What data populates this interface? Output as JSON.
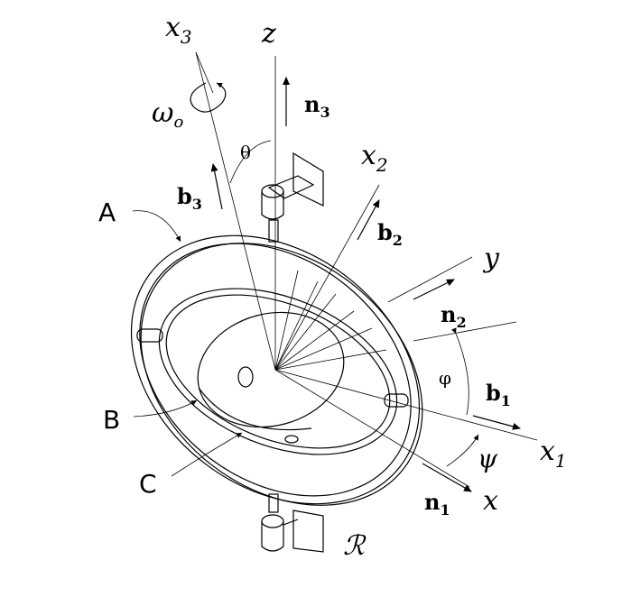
{
  "labels": {
    "x3": "x",
    "x3_sub": "3",
    "z": "z",
    "omega": "ω",
    "omega_sub": "o",
    "n3": "n",
    "n3_sub": "3",
    "theta": "θ",
    "x2": "x",
    "x2_sub": "2",
    "b3": "b",
    "b3_sub": "3",
    "b2": "b",
    "b2_sub": "2",
    "A": "A",
    "y": "y",
    "n2": "n",
    "n2_sub": "2",
    "phi": "φ",
    "b1": "b",
    "b1_sub": "1",
    "B": "B",
    "psi": "ψ",
    "x1": "x",
    "x1_sub": "1",
    "C": "C",
    "n1": "n",
    "n1_sub": "1",
    "x": "x",
    "R": "ℛ"
  }
}
